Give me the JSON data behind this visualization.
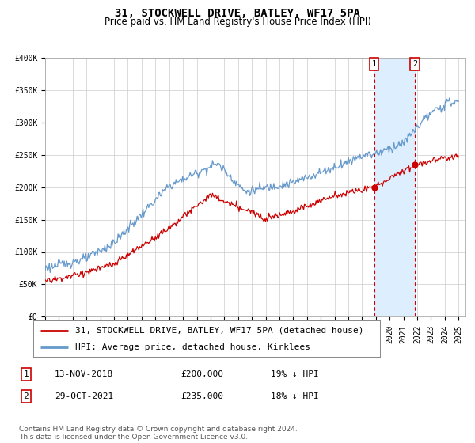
{
  "title": "31, STOCKWELL DRIVE, BATLEY, WF17 5PA",
  "subtitle": "Price paid vs. HM Land Registry's House Price Index (HPI)",
  "ylim": [
    0,
    400000
  ],
  "yticks": [
    0,
    50000,
    100000,
    150000,
    200000,
    250000,
    300000,
    350000,
    400000
  ],
  "ytick_labels": [
    "£0",
    "£50K",
    "£100K",
    "£150K",
    "£200K",
    "£250K",
    "£300K",
    "£350K",
    "£400K"
  ],
  "background_color": "#ffffff",
  "plot_bg_color": "#ffffff",
  "grid_color": "#cccccc",
  "sale1_date": 2018.87,
  "sale1_price": 200000,
  "sale1_label": "13-NOV-2018",
  "sale1_amount": "£200,000",
  "sale1_pct": "19% ↓ HPI",
  "sale2_date": 2021.83,
  "sale2_price": 235000,
  "sale2_label": "29-OCT-2021",
  "sale2_amount": "£235,000",
  "sale2_pct": "18% ↓ HPI",
  "highlight_color": "#ddeeff",
  "vline_color": "#cc0000",
  "hpi_color": "#6699cc",
  "price_color": "#cc0000",
  "legend_label1": "31, STOCKWELL DRIVE, BATLEY, WF17 5PA (detached house)",
  "legend_label2": "HPI: Average price, detached house, Kirklees",
  "footnote": "Contains HM Land Registry data © Crown copyright and database right 2024.\nThis data is licensed under the Open Government Licence v3.0.",
  "title_fontsize": 10,
  "subtitle_fontsize": 8.5,
  "tick_fontsize": 7,
  "legend_fontsize": 8,
  "footnote_fontsize": 6.5
}
